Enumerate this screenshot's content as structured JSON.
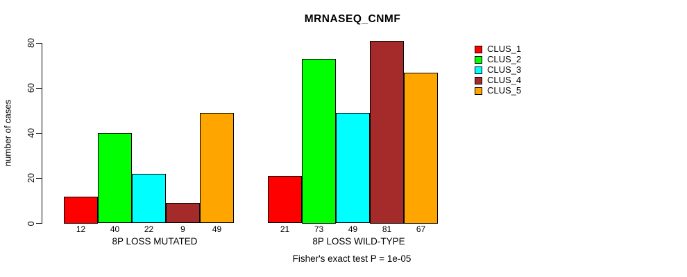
{
  "chart_data": {
    "type": "bar",
    "title": "MRNASEQ_CNMF",
    "ylabel": "number of cases",
    "ylim": [
      0,
      80
    ],
    "yticks": [
      0,
      20,
      40,
      60,
      80
    ],
    "grid": false,
    "legend_position": "right",
    "categories": [
      "8P LOSS MUTATED",
      "8P LOSS WILD-TYPE"
    ],
    "groups": [
      {
        "label": "8P LOSS MUTATED",
        "values": [
          12,
          40,
          22,
          9,
          49
        ]
      },
      {
        "label": "8P LOSS WILD-TYPE",
        "values": [
          21,
          73,
          49,
          81,
          67
        ]
      }
    ],
    "series": [
      {
        "name": "CLUS_1",
        "color": "#ff0000",
        "values": [
          12,
          21
        ]
      },
      {
        "name": "CLUS_2",
        "color": "#00ff00",
        "values": [
          40,
          73
        ]
      },
      {
        "name": "CLUS_3",
        "color": "#00ffff",
        "values": [
          22,
          49
        ]
      },
      {
        "name": "CLUS_4",
        "color": "#a52a2a",
        "values": [
          9,
          81
        ]
      },
      {
        "name": "CLUS_5",
        "color": "#ffa500",
        "values": [
          49,
          67
        ]
      }
    ],
    "bar_value_labels_shown": true,
    "footnote": "Fisher's exact test P = 1e-05"
  }
}
